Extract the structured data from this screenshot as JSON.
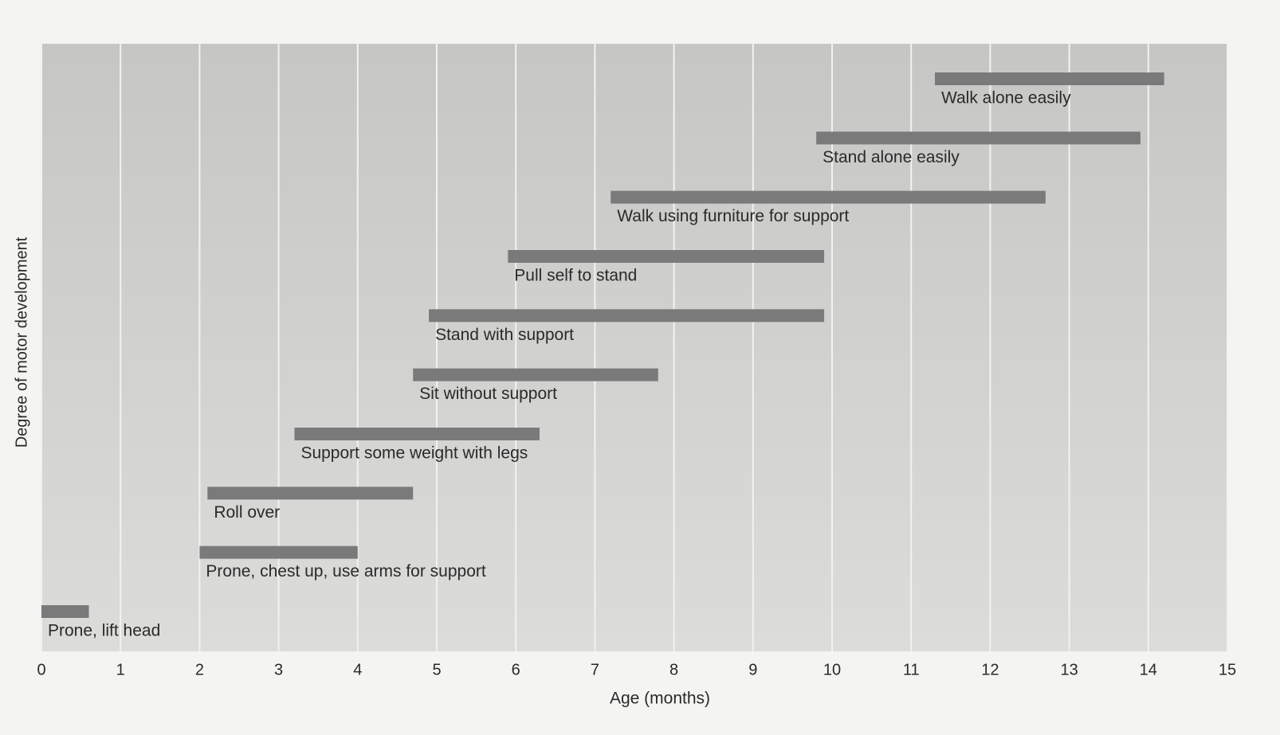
{
  "chart_data": {
    "type": "range-bar",
    "x_label": "Age (months)",
    "y_label": "Degree of motor development",
    "categories": [
      "Prone, lift head",
      "Prone, chest up, use arms for support",
      "Roll over",
      "Support some weight with legs",
      "Sit without support",
      "Stand with support",
      "Pull self to stand",
      "Walk using furniture for support",
      "Stand alone easily",
      "Walk alone easily"
    ],
    "starts": [
      0,
      2,
      2.1,
      3.2,
      4.7,
      4.9,
      5.9,
      7.2,
      9.8,
      11.3
    ],
    "ends": [
      0.6,
      4,
      4.7,
      6.3,
      7.8,
      9.9,
      9.9,
      12.7,
      13.9,
      14.2
    ],
    "color": "#7a7a7a",
    "xlim": [
      0,
      15
    ],
    "xticks": [
      0,
      1,
      2,
      3,
      4,
      5,
      6,
      7,
      8,
      9,
      10,
      11,
      12,
      13,
      14,
      15
    ],
    "grid": true
  }
}
